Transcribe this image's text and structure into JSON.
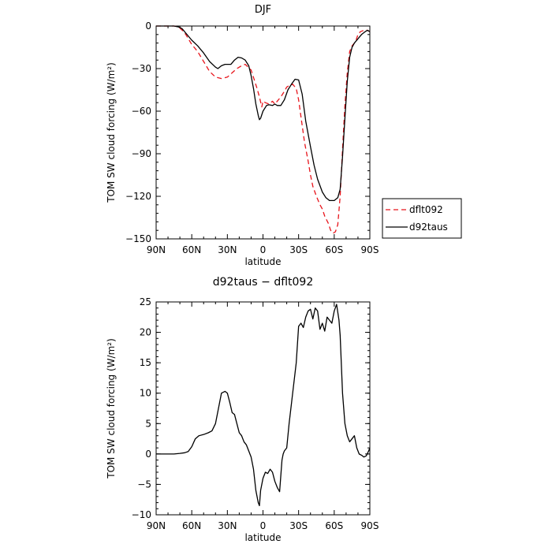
{
  "chart_data": [
    {
      "type": "line",
      "title": "DJF",
      "xlabel": "latitude",
      "ylabel": "TOM SW cloud forcing (W/m²)",
      "xlim": [
        90,
        -90
      ],
      "ylim": [
        -150,
        0
      ],
      "xticks": [
        90,
        60,
        30,
        0,
        -30,
        -60,
        -90
      ],
      "xtick_labels": [
        "90N",
        "60N",
        "30N",
        "0",
        "30S",
        "60S",
        "90S"
      ],
      "yticks": [
        0,
        -30,
        -60,
        -90,
        -120,
        -150
      ],
      "ytick_labels": [
        "0",
        "−30",
        "−60",
        "−90",
        "−120",
        "−150"
      ],
      "legend_position": "right",
      "series": [
        {
          "name": "dflt092",
          "color": "#e8141b",
          "dash": "dashed",
          "x": [
            90,
            85,
            80,
            75,
            72,
            70,
            68,
            65,
            60,
            55,
            50,
            45,
            40,
            35,
            30,
            26,
            22,
            18,
            15,
            10,
            5,
            3,
            1,
            0,
            -2,
            -5,
            -8,
            -10,
            -12,
            -15,
            -18,
            -20,
            -22,
            -25,
            -28,
            -30,
            -33,
            -35,
            -38,
            -40,
            -42,
            -45,
            -48,
            -50,
            -52,
            -55,
            -57,
            -59,
            -61,
            -63,
            -65,
            -67,
            -69,
            -71,
            -73,
            -75,
            -78,
            -80,
            -82,
            -85,
            -88,
            -90
          ],
          "y": [
            0,
            0,
            0,
            0,
            -0.5,
            -1.5,
            -3,
            -6,
            -13,
            -18,
            -25,
            -32,
            -36,
            -37,
            -36,
            -33,
            -30,
            -28,
            -27,
            -31,
            -44,
            -50,
            -57,
            -53,
            -54,
            -55,
            -53,
            -55,
            -53,
            -50,
            -46,
            -43,
            -42,
            -41,
            -44,
            -52,
            -70,
            -82,
            -95,
            -105,
            -113,
            -120,
            -126,
            -129,
            -134,
            -139,
            -144,
            -146,
            -145,
            -140,
            -120,
            -87,
            -56,
            -33,
            -18,
            -14,
            -11,
            -6,
            -4,
            -3,
            -3,
            -4
          ]
        },
        {
          "name": "d92taus",
          "color": "#000000",
          "dash": "solid",
          "x": [
            90,
            85,
            80,
            75,
            72,
            70,
            68,
            65,
            60,
            55,
            50,
            45,
            40,
            38,
            35,
            32,
            30,
            27,
            24,
            21,
            18,
            15,
            12,
            10,
            8,
            6,
            4,
            3,
            2,
            0,
            -3,
            -5,
            -8,
            -10,
            -12,
            -15,
            -18,
            -21,
            -24,
            -27,
            -30,
            -33,
            -36,
            -40,
            -43,
            -46,
            -50,
            -53,
            -56,
            -60,
            -63,
            -65,
            -67,
            -69,
            -71,
            -73,
            -75,
            -77,
            -80,
            -83,
            -86,
            -88,
            -90
          ],
          "y": [
            0,
            0,
            0,
            0,
            -0.5,
            -1,
            -2,
            -5,
            -10,
            -14,
            -19,
            -25,
            -29,
            -30,
            -28,
            -27,
            -27,
            -27,
            -24,
            -22,
            -22.5,
            -24,
            -28,
            -35,
            -44,
            -55,
            -63,
            -66,
            -65,
            -60,
            -56,
            -55.5,
            -56,
            -55,
            -56,
            -56,
            -52,
            -45,
            -41,
            -37.5,
            -38,
            -48,
            -67,
            -85,
            -98,
            -108,
            -117,
            -121,
            -123,
            -123,
            -121,
            -115,
            -92,
            -65,
            -39,
            -22,
            -15,
            -12,
            -9,
            -6,
            -4,
            -3,
            -4
          ]
        }
      ]
    },
    {
      "type": "line",
      "title": "d92taus − dflt092",
      "xlabel": "latitude",
      "ylabel": "TOM SW cloud forcing (W/m²)",
      "xlim": [
        90,
        -90
      ],
      "ylim": [
        -10,
        25
      ],
      "xticks": [
        90,
        60,
        30,
        0,
        -30,
        -60,
        -90
      ],
      "xtick_labels": [
        "90N",
        "60N",
        "30N",
        "0",
        "30S",
        "60S",
        "90S"
      ],
      "yticks": [
        25,
        20,
        15,
        10,
        5,
        0,
        -5,
        -10
      ],
      "ytick_labels": [
        "25",
        "20",
        "15",
        "10",
        "5",
        "0",
        "−5",
        "−10"
      ],
      "series": [
        {
          "color": "#000000",
          "dash": "solid",
          "x": [
            90,
            85,
            80,
            75,
            70,
            66,
            63,
            60,
            57,
            54,
            50,
            46,
            43,
            40,
            38,
            35,
            32,
            30,
            28,
            26,
            24,
            22,
            20,
            18,
            16,
            14,
            12,
            10,
            8,
            6,
            4,
            3,
            2,
            0,
            -2,
            -4,
            -6,
            -8,
            -10,
            -12,
            -14,
            -16,
            -17,
            -18,
            -20,
            -22,
            -25,
            -28,
            -30,
            -32,
            -34,
            -36,
            -38,
            -40,
            -42,
            -44,
            -46,
            -48,
            -50,
            -52,
            -54,
            -56,
            -58,
            -60,
            -62,
            -64,
            -65,
            -67,
            -69,
            -71,
            -73,
            -75,
            -77,
            -79,
            -81,
            -83,
            -85,
            -87,
            -89,
            -90
          ],
          "y": [
            0,
            0,
            0,
            0,
            0.1,
            0.2,
            0.4,
            1.2,
            2.5,
            3,
            3.2,
            3.5,
            3.8,
            5,
            7,
            10,
            10.3,
            10,
            8.5,
            6.8,
            6.5,
            5,
            3.5,
            3,
            2,
            1.5,
            0.5,
            -0.5,
            -2.5,
            -6,
            -8,
            -8.5,
            -6,
            -4,
            -3,
            -3.2,
            -2.5,
            -3,
            -4.5,
            -5.5,
            -6.2,
            -1,
            0,
            0.5,
            1,
            5,
            10,
            15,
            21,
            21.5,
            20.8,
            22.5,
            23.5,
            23.8,
            22.2,
            24,
            23.5,
            20.5,
            21.5,
            20.2,
            22.5,
            22,
            21.5,
            23.5,
            24.6,
            22,
            19.5,
            10,
            5,
            3,
            2,
            2.5,
            3,
            1,
            0,
            -0.2,
            -0.5,
            -0.3,
            0.5,
            1
          ]
        }
      ]
    }
  ]
}
